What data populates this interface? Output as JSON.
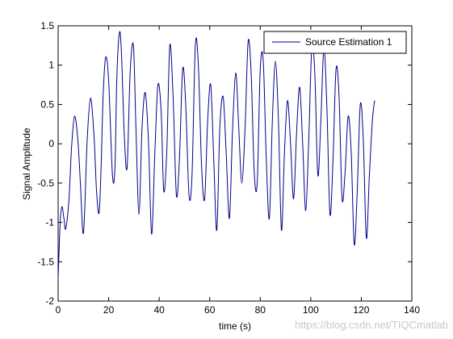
{
  "chart_data": {
    "type": "line",
    "title": "",
    "xlabel": "time (s)",
    "ylabel": "Signal Amplitude",
    "xlim": [
      0,
      140
    ],
    "ylim": [
      -2,
      1.5
    ],
    "xticks": [
      0,
      20,
      40,
      60,
      80,
      100,
      120,
      140
    ],
    "yticks": [
      -2,
      -1.5,
      -1,
      -0.5,
      0,
      0.5,
      1,
      1.5
    ],
    "xtick_labels": [
      "0",
      "20",
      "40",
      "60",
      "80",
      "100",
      "120",
      "140"
    ],
    "ytick_labels": [
      "-2",
      "-1.5",
      "-1",
      "-0.5",
      "0",
      "0.5",
      "1",
      "1.5"
    ],
    "grid": false,
    "legend_position": "top-right",
    "series": [
      {
        "name": "Source Estimation 1",
        "color": "#00008b",
        "x": [
          0.0,
          0.8,
          1.5,
          2.3,
          3.0,
          4.3,
          5.3,
          6.5,
          7.8,
          8.8,
          9.8,
          10.5,
          11.5,
          12.8,
          14.2,
          15.2,
          16.2,
          17.0,
          17.8,
          18.8,
          20.0,
          21.5,
          22.5,
          23.2,
          24.2,
          25.0,
          26.2,
          27.3,
          28.5,
          29.8,
          30.8,
          32.0,
          33.2,
          34.5,
          35.8,
          37.0,
          38.3,
          39.5,
          40.8,
          41.8,
          43.0,
          44.2,
          45.5,
          46.8,
          48.0,
          49.3,
          50.5,
          51.8,
          53.0,
          54.3,
          55.5,
          56.8,
          58.0,
          59.2,
          60.4,
          61.6,
          62.8,
          64.0,
          65.3,
          66.5,
          67.8,
          69.0,
          70.3,
          71.5,
          72.7,
          74.0,
          75.2,
          76.4,
          77.6,
          78.8,
          80.0,
          81.2,
          82.4,
          83.6,
          84.8,
          86.0,
          87.2,
          88.4,
          89.6,
          90.8,
          92.0,
          93.2,
          94.4,
          95.6,
          96.8,
          98.0,
          99.2,
          100.4,
          101.6,
          102.8,
          104.0,
          105.2,
          106.4,
          107.6,
          108.8,
          110.0,
          111.2,
          112.4,
          113.6,
          114.8,
          116.0,
          117.2,
          118.4,
          119.6,
          120.8,
          122.0,
          123.2,
          124.4,
          125.3
        ],
        "y": [
          -1.7,
          -1.0,
          -0.8,
          -0.95,
          -1.08,
          -0.7,
          -0.05,
          0.35,
          0.05,
          -0.5,
          -1.13,
          -0.85,
          0.05,
          0.58,
          0.1,
          -0.6,
          -0.88,
          -0.3,
          0.6,
          1.1,
          0.8,
          -0.4,
          -0.3,
          0.8,
          1.4,
          1.2,
          0.1,
          -0.3,
          0.9,
          1.25,
          0.2,
          -0.9,
          0.2,
          0.65,
          0.0,
          -1.15,
          -0.1,
          0.75,
          0.4,
          -0.6,
          -0.1,
          1.25,
          0.6,
          -0.65,
          -0.2,
          0.95,
          0.5,
          -0.65,
          -0.4,
          1.25,
          1.0,
          -0.3,
          -0.7,
          0.3,
          0.75,
          -0.2,
          -1.1,
          0.2,
          0.6,
          -0.1,
          -0.95,
          0.15,
          0.9,
          0.2,
          -0.5,
          0.2,
          1.3,
          0.9,
          -0.35,
          -0.5,
          0.95,
          1.05,
          -0.2,
          -0.95,
          0.3,
          1.05,
          0.3,
          -1.1,
          -0.1,
          0.55,
          0.0,
          -0.7,
          0.15,
          0.72,
          0.0,
          -0.85,
          0.05,
          1.22,
          0.9,
          -0.4,
          0.3,
          1.22,
          0.45,
          -0.9,
          -0.2,
          0.95,
          0.6,
          -0.7,
          -0.35,
          0.35,
          -0.1,
          -1.28,
          -0.6,
          0.5,
          0.05,
          -1.2,
          -0.4,
          0.3,
          0.55
        ]
      }
    ]
  },
  "watermark": "https://blog.csdn.net/TIQCmatlab"
}
